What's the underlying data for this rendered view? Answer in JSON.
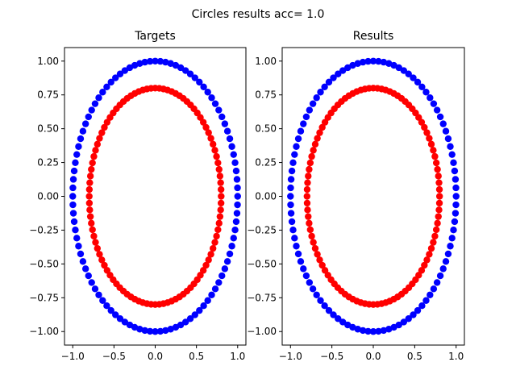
{
  "figure_title": "Circles results acc= 1.0",
  "colors": {
    "outer": "#0000ff",
    "inner": "#ff0000"
  },
  "chart_data": [
    {
      "type": "scatter",
      "title": "Targets",
      "xlabel": "",
      "ylabel": "",
      "xlim": [
        -1.1,
        1.1
      ],
      "ylim": [
        -1.1,
        1.1
      ],
      "xticks": [
        -1.0,
        -0.5,
        0.0,
        0.5,
        1.0
      ],
      "xtick_labels": [
        "−1.0",
        "−0.5",
        "0.0",
        "0.5",
        "1.0"
      ],
      "yticks": [
        -1.0,
        -0.75,
        -0.5,
        -0.25,
        0.0,
        0.25,
        0.5,
        0.75,
        1.0
      ],
      "ytick_labels": [
        "−1.00",
        "−0.75",
        "−0.50",
        "−0.25",
        "0.00",
        "0.25",
        "0.50",
        "0.75",
        "1.00"
      ],
      "grid": false,
      "series": [
        {
          "radius": 1.0,
          "n": 100,
          "color": "#0000ff"
        },
        {
          "radius": 0.8,
          "n": 100,
          "color": "#ff0000"
        }
      ]
    },
    {
      "type": "scatter",
      "title": "Results",
      "xlabel": "",
      "ylabel": "",
      "xlim": [
        -1.1,
        1.1
      ],
      "ylim": [
        -1.1,
        1.1
      ],
      "xticks": [
        -1.0,
        -0.5,
        0.0,
        0.5,
        1.0
      ],
      "xtick_labels": [
        "−1.0",
        "−0.5",
        "0.0",
        "0.5",
        "1.0"
      ],
      "yticks": [
        -1.0,
        -0.75,
        -0.5,
        -0.25,
        0.0,
        0.25,
        0.5,
        0.75,
        1.0
      ],
      "ytick_labels": [
        "−1.00",
        "−0.75",
        "−0.50",
        "−0.25",
        "0.00",
        "0.25",
        "0.50",
        "0.75",
        "1.00"
      ],
      "grid": false,
      "series": [
        {
          "radius": 1.0,
          "n": 100,
          "color": "#0000ff"
        },
        {
          "radius": 0.8,
          "n": 100,
          "color": "#ff0000"
        }
      ]
    }
  ]
}
